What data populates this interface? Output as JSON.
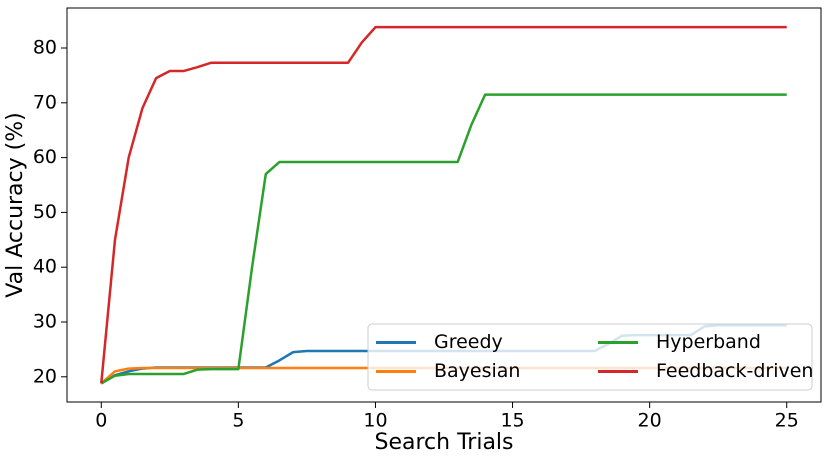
{
  "chart_data": {
    "type": "line",
    "x_label": "Search Trials",
    "y_label": "Val Accuracy (%)",
    "x": [
      0,
      0.5,
      1,
      1.5,
      2,
      2.5,
      3,
      3.5,
      4,
      4.5,
      5,
      5.5,
      6,
      6.5,
      7,
      7.5,
      8,
      8.5,
      9,
      9.5,
      10,
      10.5,
      11,
      11.5,
      12,
      12.5,
      13,
      13.5,
      14,
      14.5,
      15,
      15.5,
      16,
      16.5,
      17,
      17.5,
      18,
      18.5,
      19,
      19.5,
      20,
      20.5,
      21,
      21.5,
      22,
      22.5,
      23,
      23.5,
      24,
      24.5,
      25
    ],
    "series": [
      {
        "name": "Greedy",
        "color": "#1f77b4",
        "values": [
          18.8,
          20.3,
          21,
          21.5,
          21.7,
          21.7,
          21.7,
          21.7,
          21.7,
          21.7,
          21.7,
          21.7,
          21.7,
          23,
          24.5,
          24.7,
          24.7,
          24.7,
          24.7,
          24.7,
          24.7,
          24.7,
          24.7,
          24.7,
          24.7,
          24.7,
          24.7,
          24.7,
          24.7,
          24.7,
          24.7,
          24.7,
          24.7,
          24.7,
          24.7,
          24.7,
          24.7,
          26,
          27.5,
          27.6,
          27.6,
          27.6,
          27.6,
          27.6,
          29.2,
          29.4,
          29.4,
          29.4,
          29.4,
          29.4,
          29.4
        ]
      },
      {
        "name": "Bayesian",
        "color": "#ff7f0e",
        "values": [
          18.8,
          21,
          21.5,
          21.6,
          21.6,
          21.6,
          21.6,
          21.6,
          21.6,
          21.6,
          21.6,
          21.6,
          21.6,
          21.6,
          21.6,
          21.6,
          21.6,
          21.6,
          21.6,
          21.6,
          21.6,
          21.6,
          21.6,
          21.6,
          21.6,
          21.6,
          21.6,
          21.6,
          21.6,
          21.6,
          21.6,
          21.6,
          21.6,
          21.6,
          21.6,
          21.6,
          21.6,
          21.6,
          21.6,
          21.6,
          21.6,
          21.6,
          21.6,
          21.6,
          21.6,
          21.6,
          21.6,
          21.6,
          21.6,
          21.6,
          21.6
        ]
      },
      {
        "name": "Hyperband",
        "color": "#2ca02c",
        "values": [
          18.8,
          20.2,
          20.5,
          20.5,
          20.5,
          20.5,
          20.5,
          21.3,
          21.4,
          21.4,
          21.4,
          40,
          57,
          59.2,
          59.2,
          59.2,
          59.2,
          59.2,
          59.2,
          59.2,
          59.2,
          59.2,
          59.2,
          59.2,
          59.2,
          59.2,
          59.2,
          66,
          71.5,
          71.5,
          71.5,
          71.5,
          71.5,
          71.5,
          71.5,
          71.5,
          71.5,
          71.5,
          71.5,
          71.5,
          71.5,
          71.5,
          71.5,
          71.5,
          71.5,
          71.5,
          71.5,
          71.5,
          71.5,
          71.5,
          71.5
        ]
      },
      {
        "name": "Feedback-driven",
        "color": "#d62728",
        "values": [
          18.8,
          45,
          60,
          69,
          74.5,
          75.8,
          75.8,
          76.5,
          77.3,
          77.3,
          77.3,
          77.3,
          77.3,
          77.3,
          77.3,
          77.3,
          77.3,
          77.3,
          77.3,
          81,
          83.8,
          83.8,
          83.8,
          83.8,
          83.8,
          83.8,
          83.8,
          83.8,
          83.8,
          83.8,
          83.8,
          83.8,
          83.8,
          83.8,
          83.8,
          83.8,
          83.8,
          83.8,
          83.8,
          83.8,
          83.8,
          83.8,
          83.8,
          83.8,
          83.8,
          83.8,
          83.8,
          83.8,
          83.8,
          83.8,
          83.8
        ]
      }
    ],
    "xlim": [
      -1.25,
      26.25
    ],
    "ylim": [
      15.4,
      87.3
    ],
    "xticks": [
      0,
      5,
      10,
      15,
      20,
      25
    ],
    "yticks": [
      20,
      30,
      40,
      50,
      60,
      70,
      80
    ],
    "legend": "lower right",
    "legend_columns": 2
  }
}
